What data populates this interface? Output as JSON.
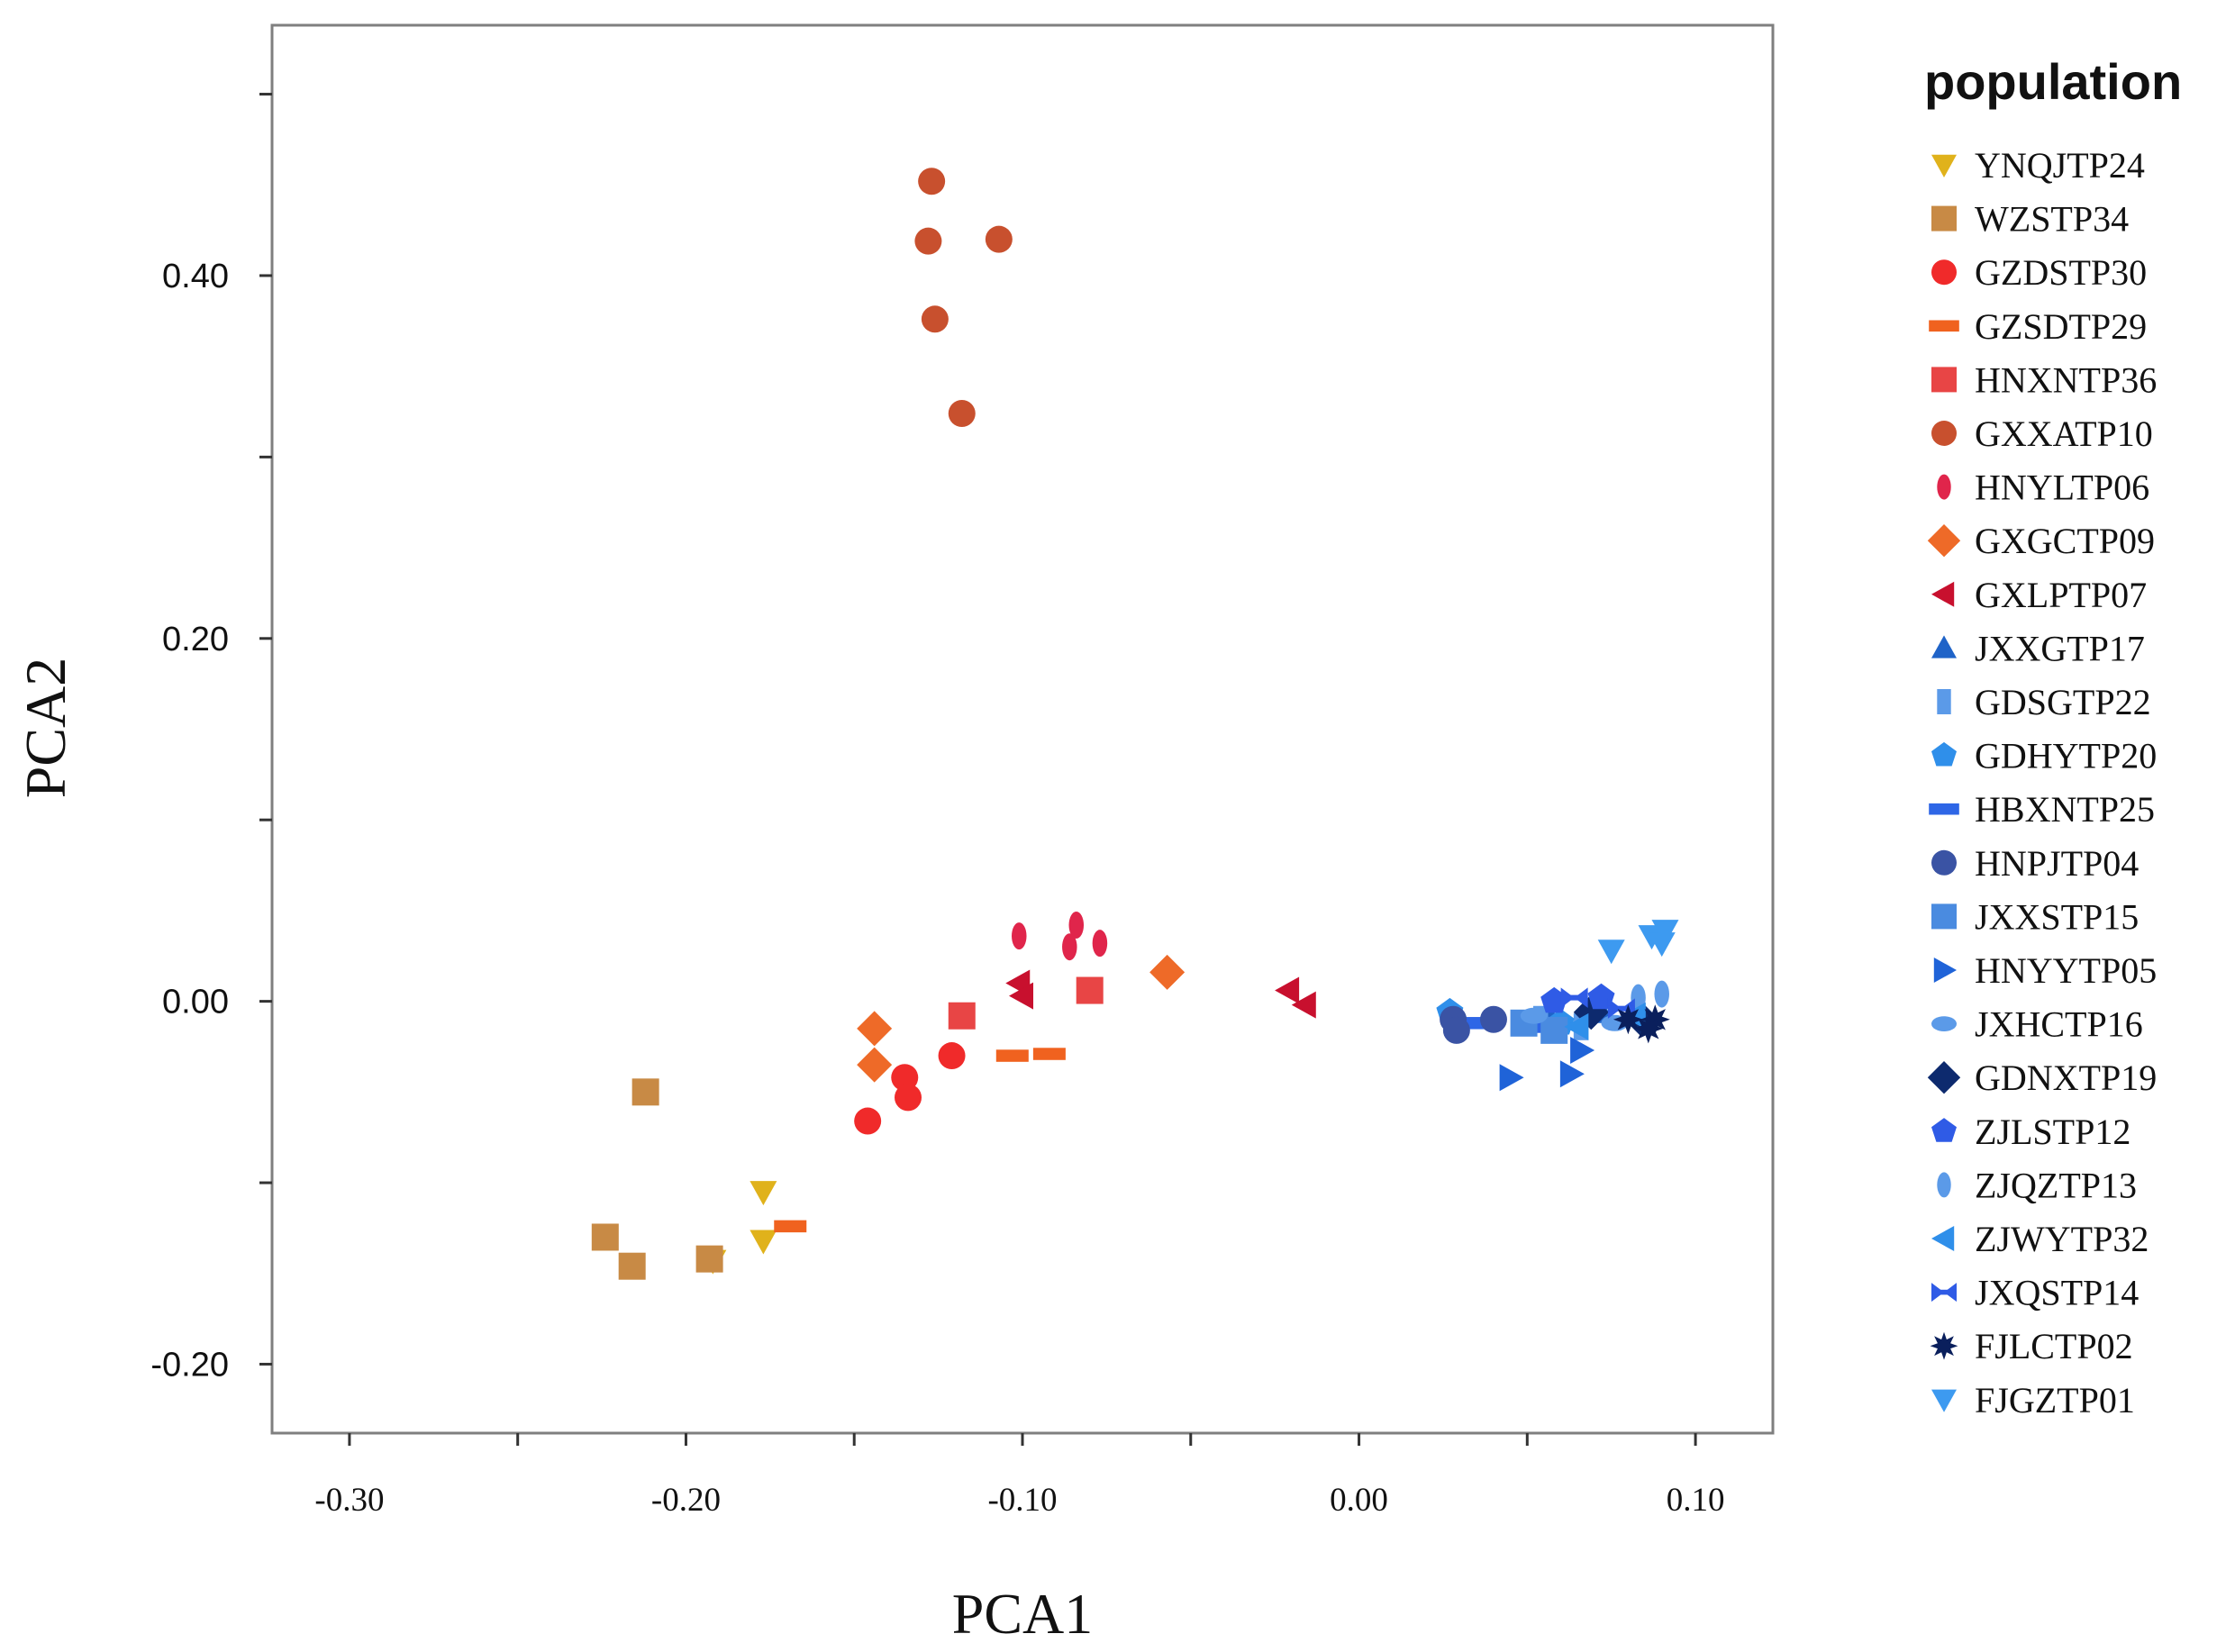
{
  "chart_data": {
    "type": "scatter",
    "xlabel": "PCA1",
    "ylabel": "PCA2",
    "xlim": [
      -0.323,
      0.123
    ],
    "ylim": [
      -0.238,
      0.538
    ],
    "x_ticks": [
      -0.3,
      -0.25,
      -0.2,
      -0.15,
      -0.1,
      -0.05,
      0.0,
      0.05,
      0.1
    ],
    "x_tick_labels": [
      "-0.30",
      "",
      "-0.20",
      "",
      "-0.10",
      "",
      "0.00",
      "",
      "0.10"
    ],
    "y_ticks": [
      -0.2,
      -0.1,
      0.0,
      0.1,
      0.2,
      0.3,
      0.4,
      0.5
    ],
    "y_tick_labels": [
      "-0.20",
      "",
      "0.00",
      "",
      "0.20",
      "",
      "0.40",
      ""
    ],
    "grid": false,
    "legend": {
      "title": "population",
      "placement": "right"
    },
    "series": [
      {
        "name": "YNQJTP24",
        "marker": "triangle-down",
        "color": "#E0B21B",
        "x": [
          -0.177,
          -0.177,
          -0.192
        ],
        "y": [
          -0.105,
          -0.132,
          -0.143
        ]
      },
      {
        "name": "WZSTP34",
        "marker": "square",
        "color": "#C88A45",
        "x": [
          -0.212,
          -0.224,
          -0.216,
          -0.193
        ],
        "y": [
          -0.05,
          -0.13,
          -0.146,
          -0.142
        ]
      },
      {
        "name": "GZDSTP30",
        "marker": "circle",
        "color": "#F02A2A",
        "x": [
          -0.146,
          -0.135,
          -0.134,
          -0.121
        ],
        "y": [
          -0.066,
          -0.042,
          -0.053,
          -0.03
        ]
      },
      {
        "name": "GZSDTP29",
        "marker": "dash",
        "color": "#F0621F",
        "x": [
          -0.169,
          -0.103,
          -0.092
        ],
        "y": [
          -0.124,
          -0.03,
          -0.029
        ]
      },
      {
        "name": "HNXNTP36",
        "marker": "square",
        "color": "#E84545",
        "x": [
          -0.118,
          -0.08
        ],
        "y": [
          -0.008,
          0.006
        ]
      },
      {
        "name": "GXXATP10",
        "marker": "circle",
        "color": "#C8502E",
        "x": [
          -0.127,
          -0.128,
          -0.107,
          -0.126,
          -0.118
        ],
        "y": [
          0.452,
          0.419,
          0.42,
          0.376,
          0.324
        ]
      },
      {
        "name": "HNYLTP06",
        "marker": "ellipse-v",
        "color": "#E0254B",
        "x": [
          -0.101,
          -0.084,
          -0.086,
          -0.077
        ],
        "y": [
          0.036,
          0.042,
          0.03,
          0.032
        ]
      },
      {
        "name": "GXGCTP09",
        "marker": "diamond",
        "color": "#EE6A28",
        "x": [
          -0.144,
          -0.144,
          -0.057
        ],
        "y": [
          -0.015,
          -0.035,
          0.016
        ]
      },
      {
        "name": "GXLPTP07",
        "marker": "triangle-left",
        "color": "#C8102E",
        "x": [
          -0.101,
          -0.1,
          -0.021,
          -0.016
        ],
        "y": [
          0.01,
          0.003,
          0.006,
          -0.002
        ]
      },
      {
        "name": "JXXGTP17",
        "marker": "triangle-up",
        "color": "#1F63C8",
        "x": [
          0.057,
          0.072
        ],
        "y": [
          -0.01,
          -0.006
        ]
      },
      {
        "name": "GDSGTP22",
        "marker": "rect-v",
        "color": "#5B9AE8",
        "x": [
          0.054,
          0.066
        ],
        "y": [
          -0.01,
          -0.014
        ]
      },
      {
        "name": "GDHYTP20",
        "marker": "pentagon",
        "color": "#2F8FEA",
        "x": [
          0.027,
          0.06
        ],
        "y": [
          -0.006,
          -0.012
        ]
      },
      {
        "name": "HBXNTP25",
        "marker": "dash",
        "color": "#2E66E6",
        "x": [
          0.036,
          0.051
        ],
        "y": [
          -0.012,
          -0.014
        ]
      },
      {
        "name": "HNPJTP04",
        "marker": "circle",
        "color": "#3A53A4",
        "x": [
          0.028,
          0.029,
          0.04
        ],
        "y": [
          -0.01,
          -0.016,
          -0.01
        ]
      },
      {
        "name": "JXXSTP15",
        "marker": "square",
        "color": "#4A8BE0",
        "x": [
          0.049,
          0.058
        ],
        "y": [
          -0.012,
          -0.016
        ]
      },
      {
        "name": "HNYYTP05",
        "marker": "triangle-right",
        "color": "#1F63D8",
        "x": [
          0.045,
          0.063,
          0.066
        ],
        "y": [
          -0.042,
          -0.04,
          -0.027
        ]
      },
      {
        "name": "JXHCTP16",
        "marker": "ellipse-h",
        "color": "#5B9AE8",
        "x": [
          0.052,
          0.076
        ],
        "y": [
          -0.008,
          -0.012
        ]
      },
      {
        "name": "GDNXTP19",
        "marker": "diamond",
        "color": "#0D2A6E",
        "x": [
          0.069,
          0.084
        ],
        "y": [
          -0.006,
          -0.01
        ]
      },
      {
        "name": "ZJLSTP12",
        "marker": "pentagon",
        "color": "#2F5BE6",
        "x": [
          0.058,
          0.072
        ],
        "y": [
          0.0,
          0.002
        ]
      },
      {
        "name": "ZJQZTP13",
        "marker": "ellipse-v",
        "color": "#5B9AE8",
        "x": [
          0.083,
          0.09
        ],
        "y": [
          0.002,
          0.004
        ]
      },
      {
        "name": "ZJWYTP32",
        "marker": "triangle-left",
        "color": "#2F8FEA",
        "x": [
          0.065,
          0.082
        ],
        "y": [
          -0.014,
          -0.008
        ]
      },
      {
        "name": "JXQSTP14",
        "marker": "bowtie",
        "color": "#2F5BE6",
        "x": [
          0.064,
          0.078
        ],
        "y": [
          0.002,
          -0.004
        ]
      },
      {
        "name": "FJLCTP02",
        "marker": "star",
        "color": "#0A1F5C",
        "x": [
          0.08,
          0.088,
          0.086
        ],
        "y": [
          -0.01,
          -0.01,
          -0.015
        ]
      },
      {
        "name": "FJGZTP01",
        "marker": "triangle-down",
        "color": "#3D9AF0",
        "x": [
          0.075,
          0.087,
          0.09,
          0.091
        ],
        "y": [
          0.028,
          0.036,
          0.032,
          0.039
        ]
      }
    ]
  }
}
